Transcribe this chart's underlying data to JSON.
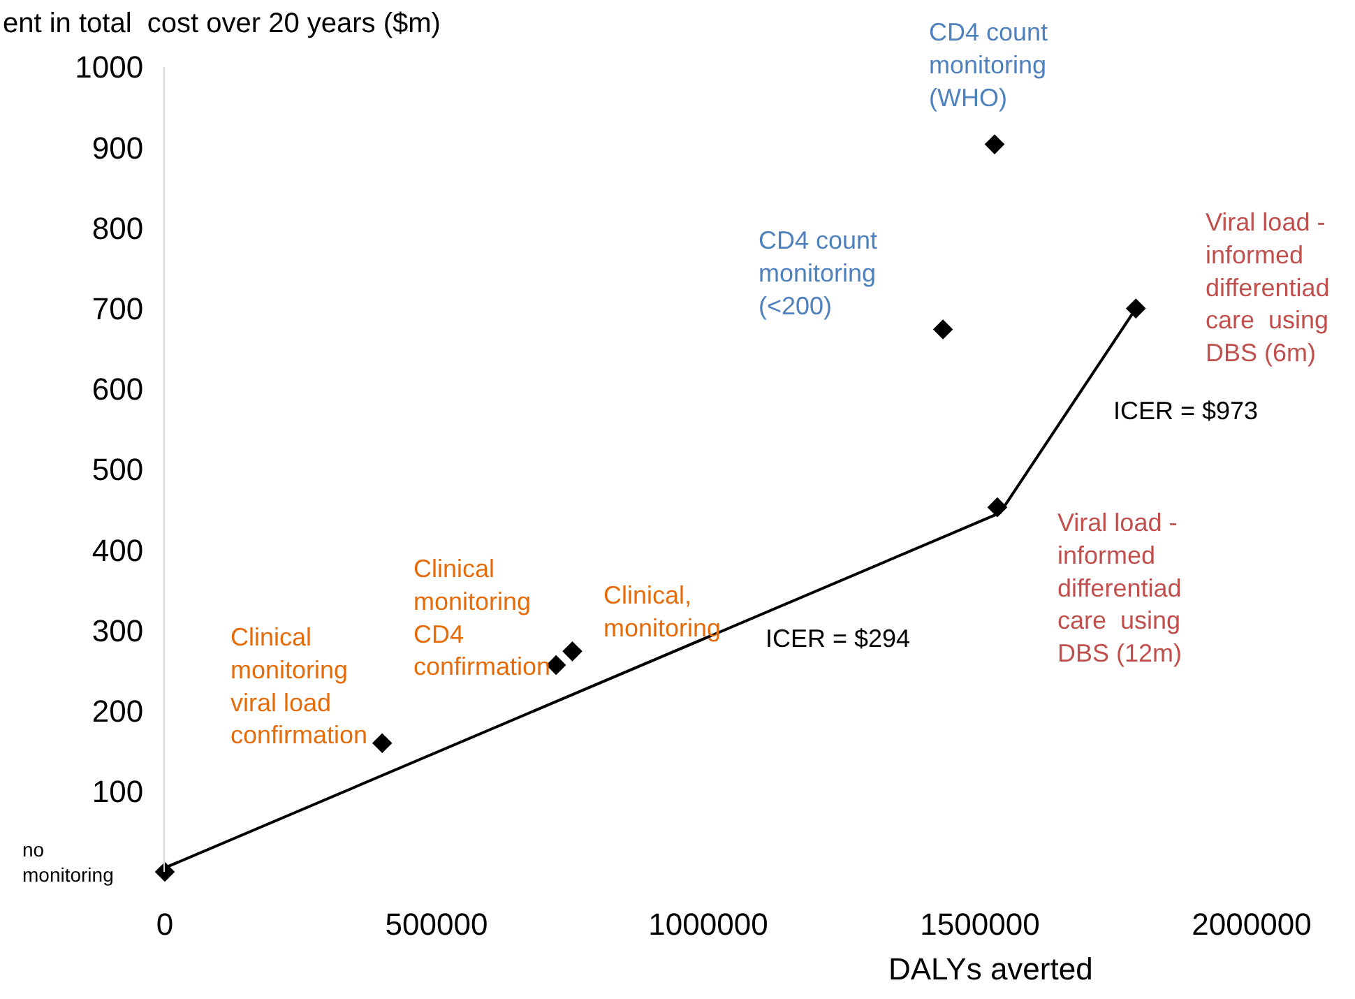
{
  "chart_data": {
    "type": "scatter",
    "ylabel": "ent in total  cost over 20 years ($m)",
    "xlabel": "DALYs averted",
    "xlim": [
      0,
      2000000
    ],
    "xticks": [
      0,
      500000,
      1000000,
      1500000,
      2000000
    ],
    "ylim": [
      0,
      1000
    ],
    "yticks": [
      100,
      200,
      300,
      400,
      500,
      600,
      700,
      800,
      900,
      1000
    ],
    "series": [
      {
        "marker": "diamond",
        "color": "#000000",
        "x": [
          0,
          400000,
          720000,
          750000,
          1432000,
          1527000,
          1787000,
          1532000
        ],
        "values": [
          0,
          160,
          257,
          274,
          674,
          904,
          700,
          453
        ]
      },
      {
        "type": "line",
        "marker": "none",
        "line_style": "solid",
        "color": "#000000",
        "x": [
          0,
          1537000,
          1787000
        ],
        "values": [
          5,
          446,
          700
        ]
      }
    ],
    "annotations": [
      {
        "text": "no\nmonitoring",
        "x": 0,
        "y": 0
      },
      {
        "text": "Clinical\nmonitoring\nviral load\nconfirmation",
        "x": 400000,
        "y": 160
      },
      {
        "text": "Clinical\nmonitoring\nCD4\nconfirmation",
        "x": 720000,
        "y": 257
      },
      {
        "text": "Clinical,\nmonitoring",
        "x": 750000,
        "y": 274
      },
      {
        "text": "CD4 count\nmonitoring\n(<200)",
        "x": 1432000,
        "y": 674
      },
      {
        "text": "CD4 count\nmonitoring\n(WHO)",
        "x": 1527000,
        "y": 904
      },
      {
        "text": "Viral load -\ninformed\ndifferentiad\ncare  using\nDBS (6m)",
        "x": 1787000,
        "y": 700
      },
      {
        "text": "Viral load -\ninformed\ndifferentiad\ncare  using\nDBS (12m)",
        "x": 1532000,
        "y": 453
      },
      {
        "text": "ICER = $973",
        "x": 1662000,
        "y": 573
      },
      {
        "text": "ICER = $294",
        "x": 1240000,
        "y": 361
      }
    ]
  }
}
